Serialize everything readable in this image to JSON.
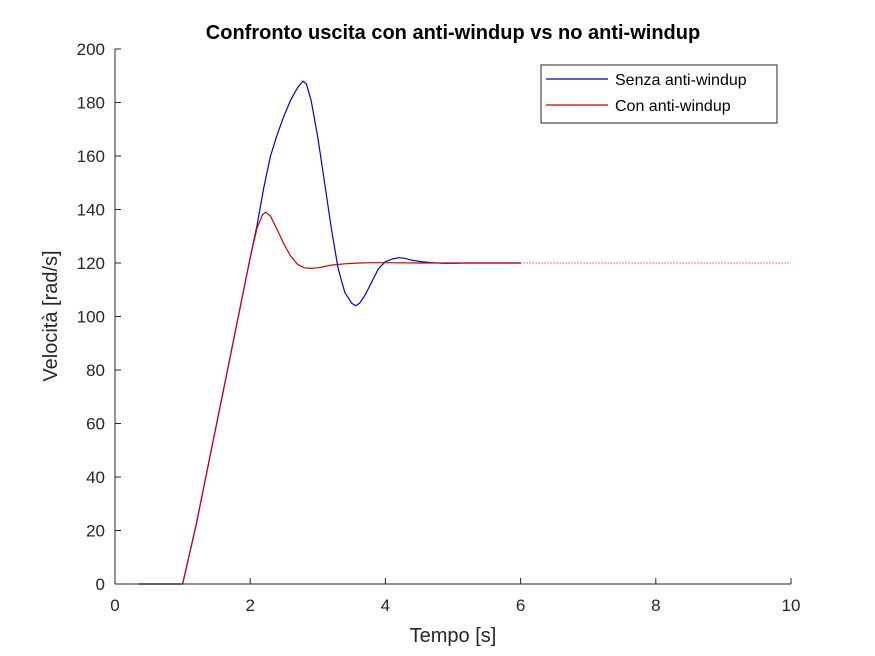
{
  "chart_data": {
    "type": "line",
    "title": "Confronto uscita con anti-windup vs no anti-windup",
    "xlabel": "Tempo [s]",
    "ylabel": "Velocità [rad/s]",
    "xlim": [
      0,
      10
    ],
    "ylim": [
      0,
      200
    ],
    "xticks": [
      0,
      2,
      4,
      6,
      8,
      10
    ],
    "yticks": [
      0,
      20,
      40,
      60,
      80,
      100,
      120,
      140,
      160,
      180,
      200
    ],
    "grid": false,
    "legend_position": "top-right",
    "series": [
      {
        "name": "Senza anti-windup",
        "color": "#0000cc",
        "x": [
          0.35,
          1.0,
          1.2,
          1.4,
          1.6,
          1.8,
          2.0,
          2.1,
          2.2,
          2.3,
          2.4,
          2.5,
          2.6,
          2.7,
          2.78,
          2.83,
          2.9,
          3.0,
          3.1,
          3.2,
          3.3,
          3.4,
          3.5,
          3.56,
          3.62,
          3.7,
          3.8,
          3.9,
          4.0,
          4.1,
          4.2,
          4.28,
          4.4,
          4.55,
          4.7,
          4.85,
          5.0,
          5.2,
          5.5,
          5.8,
          6.0
        ],
        "y": [
          0,
          0,
          22,
          47,
          72,
          97,
          122,
          134,
          148,
          160,
          168,
          175,
          181,
          185.5,
          188,
          187,
          181,
          167,
          150,
          133,
          118,
          109,
          105,
          104,
          105,
          108,
          113,
          118,
          120.5,
          121.5,
          122,
          121.8,
          121,
          120.4,
          120.1,
          119.9,
          119.9,
          120,
          120,
          120,
          120
        ]
      },
      {
        "name": "Con anti-windup",
        "color": "#d40000",
        "x": [
          0.35,
          1.0,
          1.2,
          1.4,
          1.6,
          1.8,
          2.0,
          2.1,
          2.18,
          2.23,
          2.3,
          2.4,
          2.5,
          2.6,
          2.7,
          2.8,
          2.9,
          3.0,
          3.1,
          3.2,
          3.4,
          3.6,
          3.8,
          4.0,
          4.5,
          5.0,
          6.0
        ],
        "y": [
          0,
          0,
          22,
          47,
          72,
          97,
          122,
          133,
          138,
          139,
          137.5,
          132.5,
          127,
          122.5,
          119.5,
          118.2,
          118,
          118.2,
          118.7,
          119.2,
          119.7,
          120,
          120.1,
          120.1,
          120,
          120,
          120
        ]
      },
      {
        "name": "",
        "color": "#d40000",
        "style": "dotted",
        "x": [
          6.0,
          10.0
        ],
        "y": [
          120,
          120
        ]
      }
    ]
  }
}
